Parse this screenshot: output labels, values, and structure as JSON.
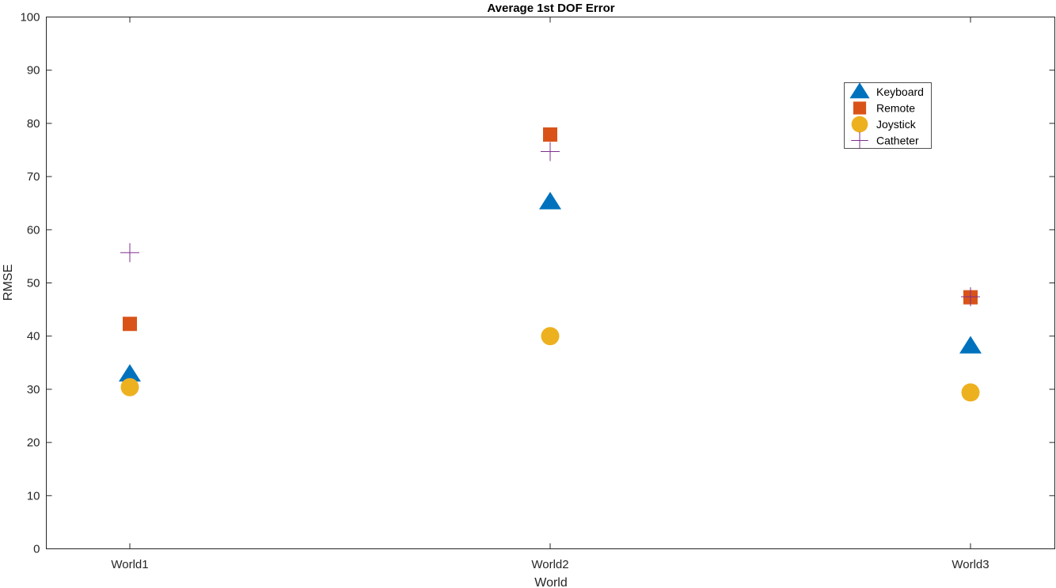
{
  "chart_data": {
    "type": "scatter",
    "title": "Average 1st DOF Error",
    "xlabel": "World",
    "ylabel": "RMSE",
    "categories": [
      "World1",
      "World2",
      "World3"
    ],
    "ylim": [
      0,
      100
    ],
    "yticks": [
      0,
      10,
      20,
      30,
      40,
      50,
      60,
      70,
      80,
      90,
      100
    ],
    "grid": false,
    "legend_position": "top-right",
    "series": [
      {
        "name": "Keyboard",
        "marker": "triangle",
        "color": "#0072BD",
        "values": [
          32.8,
          65.2,
          38.1
        ]
      },
      {
        "name": "Remote",
        "marker": "square",
        "color": "#D95319",
        "values": [
          42.3,
          77.9,
          47.3
        ]
      },
      {
        "name": "Joystick",
        "marker": "circle",
        "color": "#EDB120",
        "values": [
          30.4,
          40.0,
          29.4
        ]
      },
      {
        "name": "Catheter",
        "marker": "plus",
        "color": "#7E2F8E",
        "values": [
          55.7,
          74.7,
          47.4
        ]
      }
    ]
  }
}
